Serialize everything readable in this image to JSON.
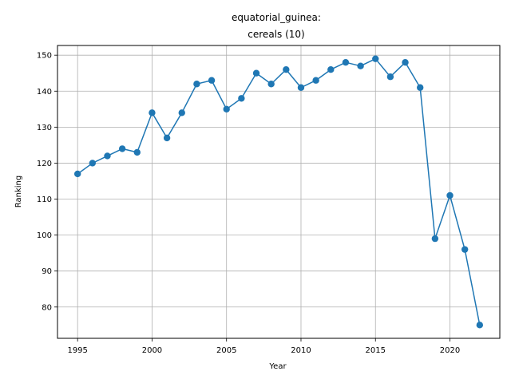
{
  "chart_data": {
    "type": "line",
    "title_lines": [
      "equatorial_guinea:",
      "cereals (10)"
    ],
    "xlabel": "Year",
    "ylabel": "Ranking",
    "xlim": [
      1993.65,
      2023.35
    ],
    "ylim": [
      71.3,
      152.7
    ],
    "xticks": [
      1995,
      2000,
      2005,
      2010,
      2015,
      2020
    ],
    "yticks": [
      80,
      90,
      100,
      110,
      120,
      130,
      140,
      150
    ],
    "grid": true,
    "series": [
      {
        "color": "#1f77b4",
        "marker": "circle",
        "x": [
          1995,
          1996,
          1997,
          1998,
          1999,
          2000,
          2001,
          2002,
          2003,
          2004,
          2005,
          2006,
          2007,
          2008,
          2009,
          2010,
          2011,
          2012,
          2013,
          2014,
          2015,
          2016,
          2017,
          2018,
          2019,
          2020,
          2021,
          2022
        ],
        "y": [
          117,
          120,
          122,
          124,
          123,
          134,
          127,
          134,
          142,
          143,
          135,
          138,
          145,
          142,
          146,
          141,
          143,
          146,
          148,
          147,
          149,
          144,
          148,
          141,
          99,
          111,
          96,
          75
        ]
      }
    ]
  }
}
